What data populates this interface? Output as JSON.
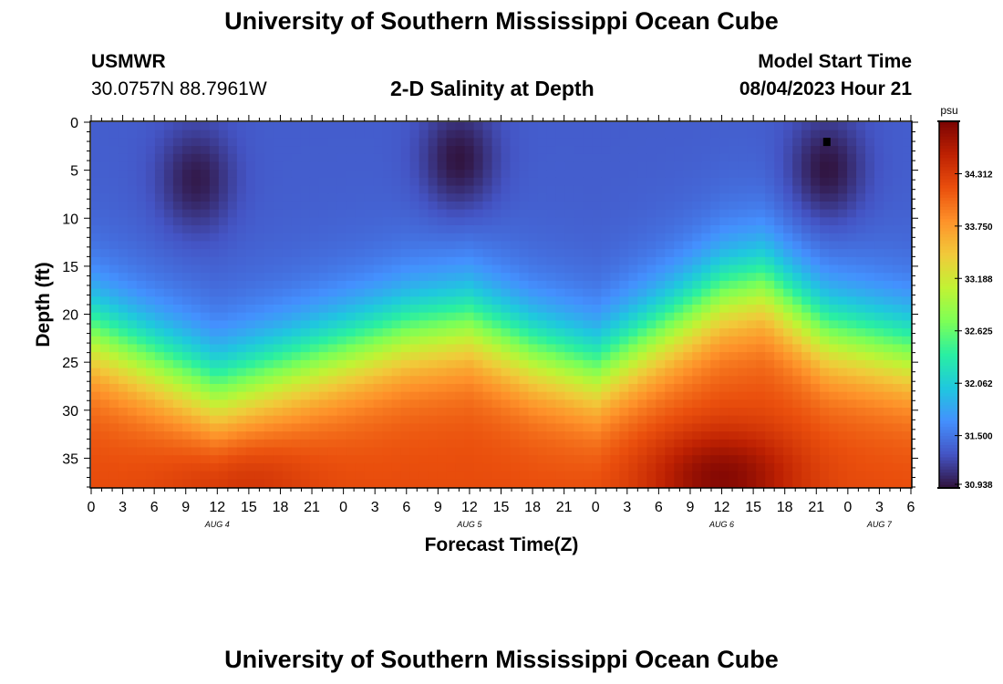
{
  "header": {
    "title": "University of Southern Mississippi Ocean Cube",
    "station": "USMWR",
    "coordinates": "30.0757N  88.7961W",
    "subtitle": "2-D Salinity at Depth",
    "model_start_label": "Model Start Time",
    "model_start_value": "08/04/2023 Hour 21"
  },
  "footer": {
    "title": "University of Southern Mississippi Ocean Cube"
  },
  "chart_data": {
    "type": "heatmap",
    "title": "2-D Salinity at Depth",
    "xlabel": "Forecast Time(Z)",
    "ylabel": "Depth (ft)",
    "x_range_hours": [
      0,
      78
    ],
    "y_range_ft": [
      0,
      38
    ],
    "x_tick_hours": [
      0,
      3,
      6,
      9,
      12,
      15,
      18,
      21,
      24,
      27,
      30,
      33,
      36,
      39,
      42,
      45,
      48,
      51,
      54,
      57,
      60,
      63,
      66,
      69,
      72,
      75,
      78
    ],
    "x_tick_labels": [
      "0",
      "3",
      "6",
      "9",
      "12",
      "15",
      "18",
      "21",
      "0",
      "3",
      "6",
      "9",
      "12",
      "15",
      "18",
      "21",
      "0",
      "3",
      "6",
      "9",
      "12",
      "15",
      "18",
      "21",
      "0",
      "3",
      "6"
    ],
    "y_ticks": [
      0,
      5,
      10,
      15,
      20,
      25,
      30,
      35
    ],
    "y_tick_labels": [
      "0",
      "5",
      "10",
      "15",
      "20",
      "25",
      "30",
      "35"
    ],
    "date_labels": [
      {
        "text": "AUG 4",
        "hour": 12
      },
      {
        "text": "AUG 5",
        "hour": 36
      },
      {
        "text": "AUG 6",
        "hour": 60
      },
      {
        "text": "AUG 7",
        "hour": 75
      }
    ],
    "colorbar": {
      "unit": "psu",
      "min": 30.938,
      "max": 34.875,
      "ticks": [
        30.938,
        31.5,
        32.062,
        32.625,
        33.188,
        33.75,
        34.312
      ],
      "tick_labels": [
        "30.938",
        "31.500",
        "32.062",
        "32.625",
        "33.188",
        "33.750",
        "34.312"
      ]
    },
    "features": {
      "surface_base_psu": 31.35,
      "freshwater_cores": [
        {
          "hour": 10,
          "depth_ft": 6,
          "psu": 30.98
        },
        {
          "hour": 35,
          "depth_ft": 4,
          "psu": 30.94
        },
        {
          "hour": 70,
          "depth_ft": 5,
          "psu": 30.94
        }
      ],
      "halocline_depth_ft": [
        {
          "hour": 0,
          "depth": 22
        },
        {
          "hour": 6,
          "depth": 25
        },
        {
          "hour": 12,
          "depth": 28
        },
        {
          "hour": 18,
          "depth": 26
        },
        {
          "hour": 24,
          "depth": 24
        },
        {
          "hour": 30,
          "depth": 22
        },
        {
          "hour": 36,
          "depth": 21
        },
        {
          "hour": 42,
          "depth": 24
        },
        {
          "hour": 48,
          "depth": 26
        },
        {
          "hour": 54,
          "depth": 22
        },
        {
          "hour": 60,
          "depth": 18
        },
        {
          "hour": 64,
          "depth": 17
        },
        {
          "hour": 70,
          "depth": 22
        },
        {
          "hour": 78,
          "depth": 24
        }
      ],
      "bottom_max": [
        {
          "hour": 14,
          "depth_ft": 37,
          "psu": 34.45
        },
        {
          "hour": 60,
          "depth_ft": 37,
          "psu": 34.82
        }
      ],
      "bottom_psu": 34.2
    },
    "marker": {
      "hour": 70,
      "depth_ft": 2
    }
  },
  "colors": {
    "colormap": [
      "#30123b",
      "#4454c4",
      "#4490fe",
      "#1fc8de",
      "#29efa2",
      "#7dff56",
      "#c1f334",
      "#f1ca3a",
      "#fe922a",
      "#ea4f0d",
      "#be2102",
      "#7a0403"
    ],
    "frame": "#000000"
  }
}
